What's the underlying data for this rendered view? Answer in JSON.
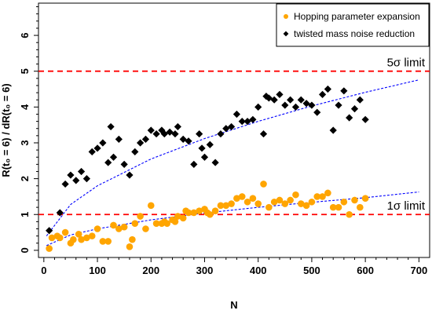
{
  "chart_data": {
    "type": "scatter",
    "xlabel": "N",
    "ylabel": "R(t₀ = 6) / dR(t₀ = 6)",
    "xlim": [
      -10,
      720
    ],
    "ylim": [
      -0.2,
      6.9
    ],
    "xticks": [
      "0",
      "100",
      "200",
      "300",
      "400",
      "500",
      "600",
      "700"
    ],
    "yticks": [
      "0",
      "1",
      "2",
      "3",
      "4",
      "5",
      "6"
    ],
    "grid": false,
    "legend_position": "top-right",
    "series": [
      {
        "name": "Hopping parameter expansion",
        "marker": "circle",
        "color": "#FFA500",
        "points": [
          [
            10,
            0.05
          ],
          [
            15,
            0.35
          ],
          [
            25,
            0.4
          ],
          [
            30,
            0.35
          ],
          [
            40,
            0.5
          ],
          [
            50,
            0.2
          ],
          [
            55,
            0.3
          ],
          [
            65,
            0.45
          ],
          [
            70,
            0.3
          ],
          [
            80,
            0.35
          ],
          [
            90,
            0.4
          ],
          [
            100,
            0.6
          ],
          [
            110,
            0.25
          ],
          [
            120,
            0.25
          ],
          [
            130,
            0.7
          ],
          [
            140,
            0.6
          ],
          [
            150,
            0.65
          ],
          [
            160,
            0.1
          ],
          [
            165,
            0.3
          ],
          [
            170,
            0.75
          ],
          [
            180,
            0.95
          ],
          [
            190,
            0.6
          ],
          [
            200,
            1.25
          ],
          [
            210,
            0.75
          ],
          [
            220,
            0.75
          ],
          [
            225,
            0.8
          ],
          [
            230,
            0.75
          ],
          [
            240,
            0.85
          ],
          [
            245,
            0.8
          ],
          [
            250,
            0.95
          ],
          [
            260,
            0.9
          ],
          [
            265,
            1.1
          ],
          [
            270,
            1.05
          ],
          [
            280,
            1.05
          ],
          [
            290,
            1.1
          ],
          [
            300,
            1.15
          ],
          [
            305,
            1.05
          ],
          [
            310,
            1.0
          ],
          [
            320,
            1.1
          ],
          [
            330,
            1.25
          ],
          [
            340,
            1.25
          ],
          [
            350,
            1.3
          ],
          [
            360,
            1.45
          ],
          [
            370,
            1.5
          ],
          [
            380,
            1.35
          ],
          [
            390,
            1.45
          ],
          [
            400,
            1.3
          ],
          [
            410,
            1.85
          ],
          [
            420,
            1.2
          ],
          [
            430,
            1.35
          ],
          [
            440,
            1.4
          ],
          [
            450,
            1.3
          ],
          [
            460,
            1.4
          ],
          [
            470,
            1.55
          ],
          [
            480,
            1.3
          ],
          [
            490,
            1.25
          ],
          [
            500,
            1.35
          ],
          [
            510,
            1.5
          ],
          [
            520,
            1.5
          ],
          [
            530,
            1.6
          ],
          [
            540,
            1.2
          ],
          [
            550,
            1.2
          ],
          [
            560,
            1.35
          ],
          [
            570,
            1.0
          ],
          [
            580,
            1.4
          ],
          [
            590,
            1.2
          ],
          [
            600,
            1.45
          ]
        ]
      },
      {
        "name": "twisted mass noise reduction",
        "marker": "diamond",
        "color": "#000000",
        "points": [
          [
            10,
            0.55
          ],
          [
            30,
            1.05
          ],
          [
            40,
            1.85
          ],
          [
            50,
            2.1
          ],
          [
            60,
            1.95
          ],
          [
            70,
            2.2
          ],
          [
            80,
            2.0
          ],
          [
            90,
            2.75
          ],
          [
            100,
            2.85
          ],
          [
            110,
            3.0
          ],
          [
            120,
            2.45
          ],
          [
            125,
            3.45
          ],
          [
            130,
            2.6
          ],
          [
            140,
            3.1
          ],
          [
            150,
            2.4
          ],
          [
            160,
            2.1
          ],
          [
            170,
            2.75
          ],
          [
            180,
            3.0
          ],
          [
            190,
            3.1
          ],
          [
            200,
            3.35
          ],
          [
            210,
            3.25
          ],
          [
            220,
            3.35
          ],
          [
            225,
            3.25
          ],
          [
            235,
            3.3
          ],
          [
            245,
            3.25
          ],
          [
            250,
            3.45
          ],
          [
            260,
            3.1
          ],
          [
            270,
            3.05
          ],
          [
            280,
            2.4
          ],
          [
            290,
            3.25
          ],
          [
            295,
            2.85
          ],
          [
            300,
            2.6
          ],
          [
            310,
            2.95
          ],
          [
            320,
            2.45
          ],
          [
            330,
            3.25
          ],
          [
            340,
            3.4
          ],
          [
            350,
            3.45
          ],
          [
            360,
            3.8
          ],
          [
            370,
            3.6
          ],
          [
            380,
            3.6
          ],
          [
            390,
            3.65
          ],
          [
            400,
            4.0
          ],
          [
            410,
            3.25
          ],
          [
            415,
            4.3
          ],
          [
            420,
            4.25
          ],
          [
            430,
            4.2
          ],
          [
            440,
            4.35
          ],
          [
            450,
            4.05
          ],
          [
            460,
            4.2
          ],
          [
            470,
            4.0
          ],
          [
            480,
            4.2
          ],
          [
            490,
            4.1
          ],
          [
            500,
            4.05
          ],
          [
            510,
            3.85
          ],
          [
            520,
            4.35
          ],
          [
            530,
            4.5
          ],
          [
            540,
            3.35
          ],
          [
            550,
            4.05
          ],
          [
            560,
            4.45
          ],
          [
            570,
            3.7
          ],
          [
            580,
            3.95
          ],
          [
            590,
            4.2
          ],
          [
            600,
            3.65
          ]
        ]
      }
    ],
    "fits": [
      {
        "label": "fit-blue-upper",
        "color": "#0000FF",
        "style": "dotted",
        "a": 0.18,
        "points": [
          [
            5,
            0.4
          ],
          [
            50,
            1.28
          ],
          [
            100,
            1.8
          ],
          [
            200,
            2.55
          ],
          [
            300,
            3.12
          ],
          [
            400,
            3.6
          ],
          [
            500,
            4.03
          ],
          [
            600,
            4.41
          ],
          [
            700,
            4.76
          ]
        ]
      },
      {
        "label": "fit-blue-lower",
        "color": "#0000FF",
        "style": "dotted",
        "points": [
          [
            5,
            0.13
          ],
          [
            50,
            0.43
          ],
          [
            100,
            0.6
          ],
          [
            200,
            0.85
          ],
          [
            300,
            1.04
          ],
          [
            400,
            1.2
          ],
          [
            500,
            1.34
          ],
          [
            600,
            1.47
          ],
          [
            700,
            1.63
          ]
        ]
      }
    ],
    "reference_lines": [
      {
        "y": 5,
        "label": "5σ limit",
        "color": "#FF0000",
        "style": "dashed"
      },
      {
        "y": 1,
        "label": "1σ limit",
        "color": "#FF0000",
        "style": "dashed"
      }
    ]
  }
}
